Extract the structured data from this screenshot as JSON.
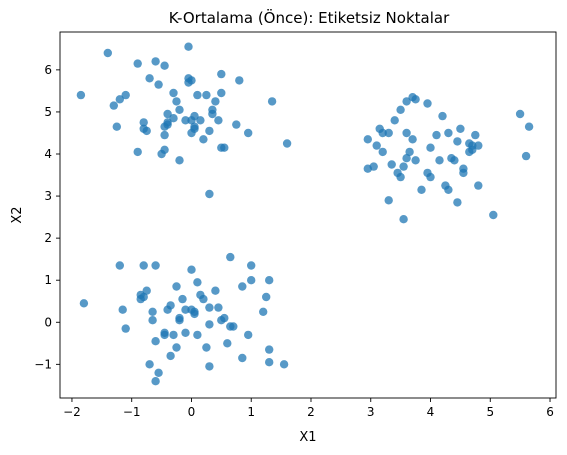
{
  "chart_data": {
    "type": "scatter",
    "title": "K-Ortalama (Önce): Etiketsiz Noktalar",
    "xlabel": "X1",
    "ylabel": "X2",
    "xlim": [
      -2.2,
      6.1
    ],
    "ylim": [
      -1.8,
      6.9
    ],
    "xticks": [
      -2,
      -1,
      0,
      1,
      2,
      3,
      4,
      5,
      6
    ],
    "yticks": [
      -1,
      0,
      1,
      2,
      3,
      4,
      5,
      6
    ],
    "grid": false,
    "point_color": "#1f77b4",
    "point_alpha": 0.75,
    "series": [
      {
        "values": [
          [
            -1.85,
            5.4
          ],
          [
            -1.4,
            6.4
          ],
          [
            -1.3,
            5.15
          ],
          [
            -1.25,
            4.65
          ],
          [
            -1.2,
            5.3
          ],
          [
            -1.1,
            5.4
          ],
          [
            -0.9,
            6.15
          ],
          [
            -0.9,
            4.05
          ],
          [
            -0.8,
            4.6
          ],
          [
            -0.8,
            4.75
          ],
          [
            -0.75,
            4.55
          ],
          [
            -0.7,
            5.8
          ],
          [
            -0.6,
            6.2
          ],
          [
            -0.55,
            5.65
          ],
          [
            -0.5,
            4.0
          ],
          [
            -0.45,
            4.1
          ],
          [
            -0.45,
            4.45
          ],
          [
            -0.45,
            4.65
          ],
          [
            -0.4,
            4.75
          ],
          [
            -0.4,
            4.7
          ],
          [
            -0.4,
            4.95
          ],
          [
            -0.45,
            6.1
          ],
          [
            -0.3,
            4.85
          ],
          [
            -0.3,
            5.45
          ],
          [
            -0.25,
            5.25
          ],
          [
            -0.2,
            5.05
          ],
          [
            -0.2,
            3.85
          ],
          [
            -0.1,
            4.8
          ],
          [
            -0.05,
            5.7
          ],
          [
            -0.05,
            5.8
          ],
          [
            -0.05,
            6.55
          ],
          [
            0.0,
            4.8
          ],
          [
            0.0,
            5.75
          ],
          [
            0.0,
            4.5
          ],
          [
            0.05,
            4.9
          ],
          [
            0.05,
            4.6
          ],
          [
            0.05,
            4.65
          ],
          [
            0.1,
            5.4
          ],
          [
            0.15,
            4.8
          ],
          [
            0.25,
            5.4
          ],
          [
            0.2,
            4.35
          ],
          [
            0.3,
            4.55
          ],
          [
            0.35,
            4.95
          ],
          [
            0.35,
            5.05
          ],
          [
            0.4,
            5.25
          ],
          [
            0.45,
            4.8
          ],
          [
            0.5,
            5.9
          ],
          [
            0.5,
            4.15
          ],
          [
            0.55,
            4.15
          ],
          [
            0.5,
            5.45
          ],
          [
            0.75,
            4.7
          ],
          [
            0.8,
            5.75
          ],
          [
            0.95,
            4.5
          ],
          [
            1.35,
            5.25
          ],
          [
            1.6,
            4.25
          ],
          [
            0.3,
            3.05
          ],
          [
            -1.8,
            0.45
          ],
          [
            -1.2,
            1.35
          ],
          [
            -1.15,
            0.3
          ],
          [
            -1.1,
            -0.15
          ],
          [
            -0.85,
            0.65
          ],
          [
            -0.85,
            0.55
          ],
          [
            -0.8,
            0.6
          ],
          [
            -0.8,
            1.35
          ],
          [
            -0.75,
            0.75
          ],
          [
            -0.7,
            -1.0
          ],
          [
            -0.65,
            0.25
          ],
          [
            -0.65,
            0.05
          ],
          [
            -0.6,
            1.35
          ],
          [
            -0.6,
            -0.45
          ],
          [
            -0.6,
            -1.4
          ],
          [
            -0.55,
            -1.2
          ],
          [
            -0.45,
            -0.25
          ],
          [
            -0.45,
            -0.3
          ],
          [
            -0.4,
            0.3
          ],
          [
            -0.35,
            0.4
          ],
          [
            -0.35,
            -0.8
          ],
          [
            -0.3,
            -0.3
          ],
          [
            -0.25,
            -0.6
          ],
          [
            -0.25,
            0.85
          ],
          [
            -0.2,
            0.1
          ],
          [
            -0.2,
            0.05
          ],
          [
            -0.15,
            0.55
          ],
          [
            -0.1,
            -0.25
          ],
          [
            -0.1,
            0.3
          ],
          [
            0.0,
            0.3
          ],
          [
            0.0,
            1.25
          ],
          [
            0.05,
            0.25
          ],
          [
            0.05,
            0.2
          ],
          [
            0.1,
            -0.3
          ],
          [
            0.1,
            0.95
          ],
          [
            0.15,
            0.65
          ],
          [
            0.2,
            0.55
          ],
          [
            0.25,
            -0.6
          ],
          [
            0.3,
            -0.05
          ],
          [
            0.3,
            0.35
          ],
          [
            0.3,
            -1.05
          ],
          [
            0.4,
            0.75
          ],
          [
            0.45,
            0.35
          ],
          [
            0.5,
            0.05
          ],
          [
            0.55,
            0.1
          ],
          [
            0.6,
            -0.5
          ],
          [
            0.65,
            1.55
          ],
          [
            0.7,
            -0.1
          ],
          [
            0.85,
            0.85
          ],
          [
            0.85,
            -0.85
          ],
          [
            0.95,
            -0.3
          ],
          [
            1.0,
            1.35
          ],
          [
            1.0,
            1.0
          ],
          [
            1.2,
            0.25
          ],
          [
            1.25,
            0.6
          ],
          [
            1.3,
            -0.65
          ],
          [
            1.3,
            1.0
          ],
          [
            1.3,
            -0.95
          ],
          [
            1.55,
            -1.0
          ],
          [
            0.65,
            -0.1
          ],
          [
            2.95,
            4.35
          ],
          [
            2.95,
            3.65
          ],
          [
            3.05,
            3.7
          ],
          [
            3.1,
            4.2
          ],
          [
            3.15,
            4.6
          ],
          [
            3.2,
            4.5
          ],
          [
            3.2,
            4.05
          ],
          [
            3.3,
            4.5
          ],
          [
            3.3,
            2.9
          ],
          [
            3.35,
            3.75
          ],
          [
            3.4,
            4.8
          ],
          [
            3.45,
            3.55
          ],
          [
            3.5,
            3.45
          ],
          [
            3.5,
            5.05
          ],
          [
            3.55,
            2.45
          ],
          [
            3.55,
            3.7
          ],
          [
            3.6,
            4.5
          ],
          [
            3.6,
            3.9
          ],
          [
            3.65,
            4.05
          ],
          [
            3.7,
            4.35
          ],
          [
            3.7,
            5.35
          ],
          [
            3.75,
            5.3
          ],
          [
            3.75,
            3.85
          ],
          [
            3.85,
            3.15
          ],
          [
            3.95,
            5.2
          ],
          [
            3.95,
            3.55
          ],
          [
            4.0,
            3.45
          ],
          [
            4.0,
            4.15
          ],
          [
            4.1,
            4.45
          ],
          [
            4.15,
            3.85
          ],
          [
            4.2,
            4.9
          ],
          [
            4.25,
            3.25
          ],
          [
            4.3,
            3.15
          ],
          [
            4.3,
            4.5
          ],
          [
            4.35,
            3.9
          ],
          [
            4.4,
            3.85
          ],
          [
            4.45,
            2.85
          ],
          [
            4.45,
            4.3
          ],
          [
            4.5,
            4.6
          ],
          [
            4.55,
            3.65
          ],
          [
            4.55,
            3.55
          ],
          [
            4.65,
            4.25
          ],
          [
            4.65,
            4.05
          ],
          [
            4.7,
            4.2
          ],
          [
            4.75,
            4.45
          ],
          [
            4.8,
            3.25
          ],
          [
            4.8,
            4.2
          ],
          [
            5.05,
            2.55
          ],
          [
            5.5,
            4.95
          ],
          [
            5.6,
            3.95
          ],
          [
            5.65,
            4.65
          ],
          [
            3.6,
            5.25
          ],
          [
            4.7,
            4.1
          ]
        ]
      }
    ]
  }
}
